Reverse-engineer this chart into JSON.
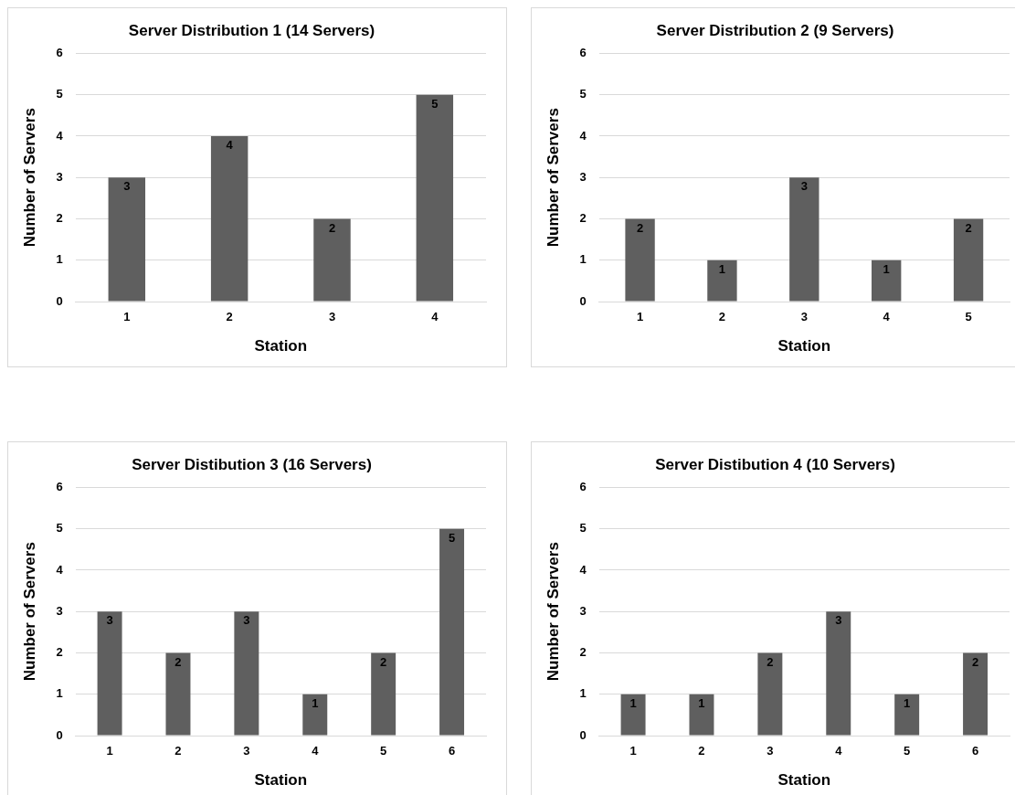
{
  "chart_data": [
    {
      "type": "bar",
      "title": "Server Distribution 1 (14 Servers)",
      "xlabel": "Station",
      "ylabel": "Number of Servers",
      "categories": [
        "1",
        "2",
        "3",
        "4"
      ],
      "values": [
        3,
        4,
        2,
        5
      ],
      "color": "#5f5f5f",
      "ylim": [
        0,
        6
      ],
      "yticks": [
        0,
        1,
        2,
        3,
        4,
        5,
        6
      ],
      "grid": "y",
      "data_labels": true,
      "legend": false
    },
    {
      "type": "bar",
      "title": "Server Distribution 2 (9 Servers)",
      "xlabel": "Station",
      "ylabel": "Number of Servers",
      "categories": [
        "1",
        "2",
        "3",
        "4",
        "5"
      ],
      "values": [
        2,
        1,
        3,
        1,
        2
      ],
      "color": "#5f5f5f",
      "ylim": [
        0,
        6
      ],
      "yticks": [
        0,
        1,
        2,
        3,
        4,
        5,
        6
      ],
      "grid": "y",
      "data_labels": true,
      "legend": false
    },
    {
      "type": "bar",
      "title": "Server Distibution 3 (16 Servers)",
      "xlabel": "Station",
      "ylabel": "Number of Servers",
      "categories": [
        "1",
        "2",
        "3",
        "4",
        "5",
        "6"
      ],
      "values": [
        3,
        2,
        3,
        1,
        2,
        5
      ],
      "color": "#5f5f5f",
      "ylim": [
        0,
        6
      ],
      "yticks": [
        0,
        1,
        2,
        3,
        4,
        5,
        6
      ],
      "grid": "y",
      "data_labels": true,
      "legend": false
    },
    {
      "type": "bar",
      "title": "Server Distibution 4 (10 Servers)",
      "xlabel": "Station",
      "ylabel": "Number of Servers",
      "categories": [
        "1",
        "2",
        "3",
        "4",
        "5",
        "6"
      ],
      "values": [
        1,
        1,
        2,
        3,
        1,
        2
      ],
      "color": "#5f5f5f",
      "ylim": [
        0,
        6
      ],
      "yticks": [
        0,
        1,
        2,
        3,
        4,
        5,
        6
      ],
      "grid": "y",
      "data_labels": true,
      "legend": false
    }
  ]
}
